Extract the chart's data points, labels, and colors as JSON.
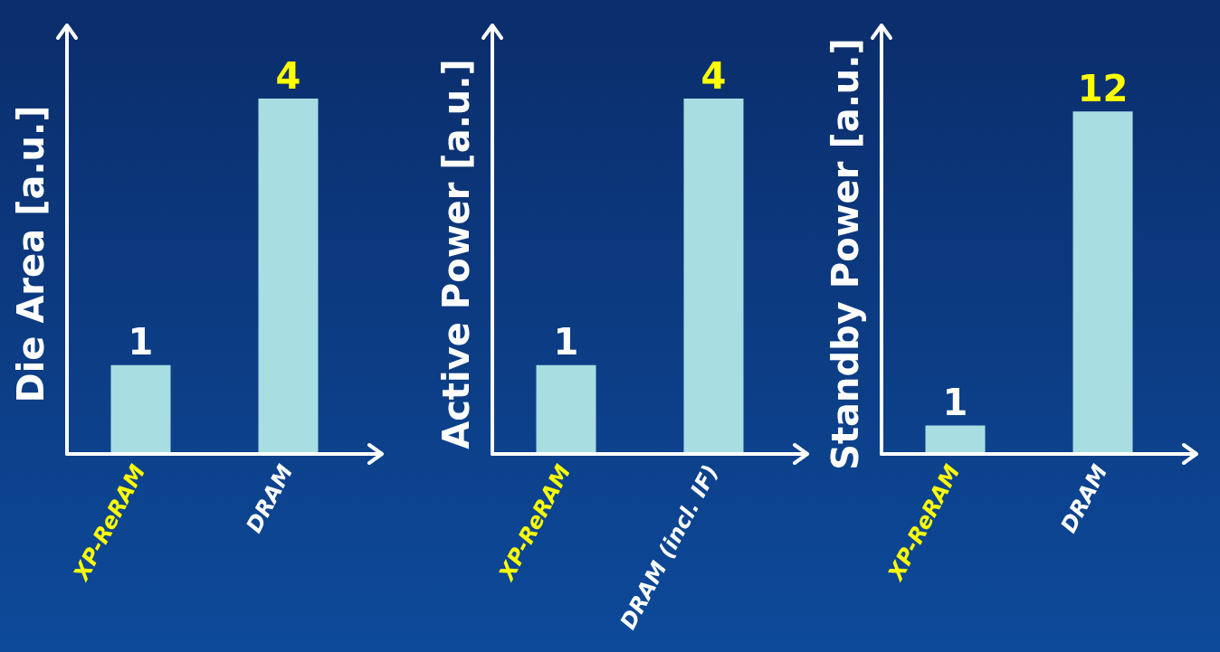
{
  "chart_data": [
    {
      "type": "bar",
      "ylabel": "Die Area [a.u.]",
      "categories": [
        "XP-ReRAM",
        "DRAM"
      ],
      "values": [
        1,
        4
      ],
      "color": "#a8dde2",
      "data_labels": true,
      "tick_labels": "x",
      "grid": false,
      "legend": false
    },
    {
      "type": "bar",
      "ylabel": "Active Power [a.u.]",
      "categories": [
        "XP-ReRAM",
        "DRAM (incl. IF)"
      ],
      "values": [
        1,
        4
      ],
      "color": "#a8dde2",
      "data_labels": true,
      "tick_labels": "x",
      "grid": false,
      "legend": false
    },
    {
      "type": "bar",
      "ylabel": "Standby Power [a.u.]",
      "categories": [
        "XP-ReRAM",
        "DRAM"
      ],
      "values": [
        1,
        12
      ],
      "color": "#a8dde2",
      "data_labels": true,
      "tick_labels": "x",
      "grid": false,
      "legend": false
    }
  ]
}
